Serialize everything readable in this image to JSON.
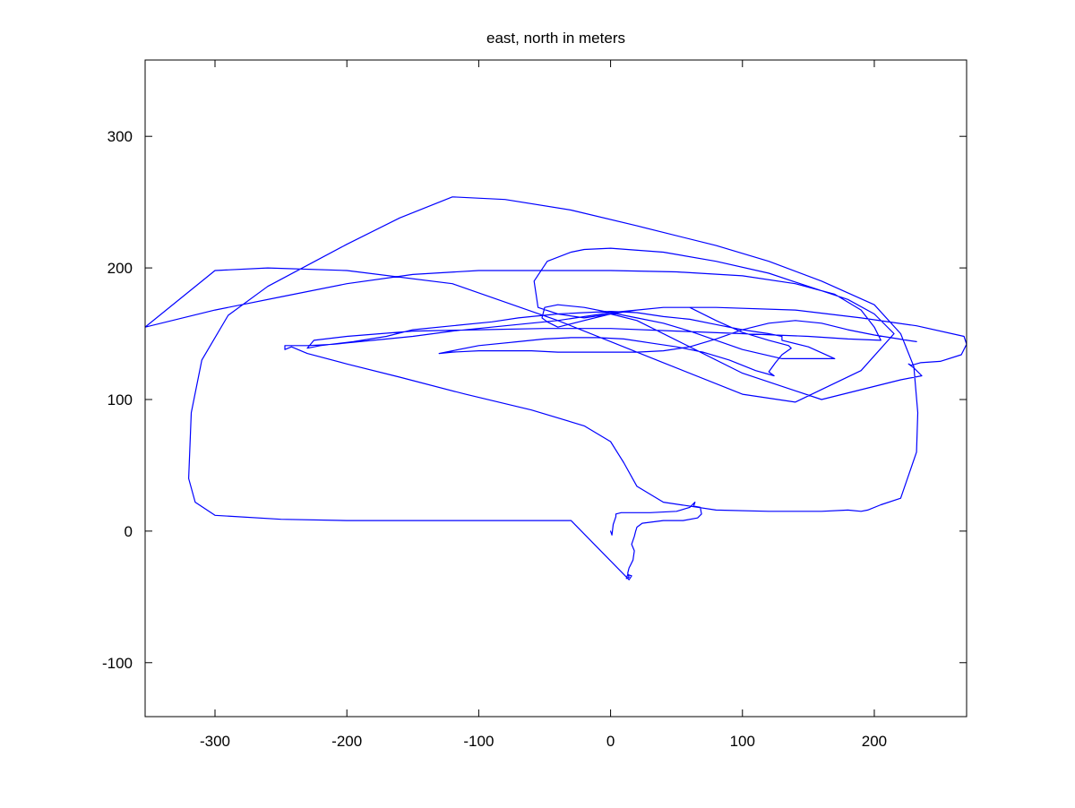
{
  "chart_data": {
    "type": "line",
    "title": "east, north in meters",
    "xlabel": "",
    "ylabel": "",
    "xlim": [
      -353,
      270
    ],
    "ylim": [
      -141,
      358
    ],
    "xticks": [
      -300,
      -200,
      -100,
      0,
      100,
      200
    ],
    "yticks": [
      -100,
      0,
      100,
      200,
      300
    ],
    "xtick_labels": [
      "-300",
      "-200",
      "-100",
      "0",
      "100",
      "200"
    ],
    "ytick_labels": [
      "-100",
      "0",
      "100",
      "200",
      "300"
    ],
    "grid": false,
    "legend": "none",
    "series": [
      {
        "color": "#0000ff",
        "x": [
          0,
          1,
          2,
          4,
          4,
          8,
          30,
          50,
          60,
          64,
          63,
          68,
          69,
          66,
          55,
          40,
          24,
          20,
          19,
          18,
          16,
          18,
          17,
          15,
          14,
          13,
          14,
          12,
          13,
          16,
          14,
          -30,
          -100,
          -200,
          -250,
          -300,
          -315,
          -320,
          -318,
          -310,
          -290,
          -260,
          -200,
          -160,
          -120,
          -80,
          -30,
          20,
          80,
          120,
          160,
          200,
          220,
          230,
          233,
          232,
          220,
          205,
          195,
          190,
          180,
          160,
          120,
          80,
          40,
          20,
          10,
          0,
          -20,
          -60,
          -110,
          -160,
          -200,
          -230,
          -242,
          -247,
          -247,
          -230,
          -210,
          -180,
          -150,
          -120,
          -80,
          -40,
          0,
          40,
          80,
          140,
          190,
          232,
          268,
          270,
          266,
          250,
          235,
          228,
          226,
          230,
          236,
          220,
          160,
          100,
          60,
          20,
          0,
          -20,
          -40,
          -55,
          -58,
          -48,
          -30,
          -20,
          0,
          40,
          80,
          120,
          150,
          180,
          200,
          215,
          190,
          140,
          100,
          40,
          -40,
          -120,
          -200,
          -260,
          -300,
          -353,
          -300,
          -250,
          -200,
          -150,
          -100,
          -50,
          0,
          50,
          100,
          140,
          170,
          190,
          200,
          205,
          180,
          150,
          100,
          50,
          0,
          -50,
          -100,
          -150,
          -200,
          -225,
          -230,
          -220,
          -195,
          -170,
          -150,
          -120,
          -90,
          -70,
          -60,
          -40,
          -20,
          0,
          20,
          40,
          60,
          80,
          100,
          120,
          130,
          130,
          150,
          170,
          130,
          100,
          80,
          60,
          40,
          20,
          0,
          -20,
          -40,
          -50,
          -52,
          -48,
          -40,
          -20,
          0,
          20,
          40,
          60,
          80,
          100,
          120,
          135,
          137,
          130,
          125,
          120,
          124,
          110,
          90,
          70,
          50,
          30,
          10,
          -10,
          -30,
          -50,
          -70,
          -100,
          -120,
          -130,
          -120,
          -100,
          -80,
          -60,
          -40,
          -20,
          0,
          20,
          40,
          60,
          80,
          100,
          120,
          140,
          160,
          180,
          200,
          225,
          232
        ],
        "y": [
          0,
          -3,
          5,
          11,
          13,
          14,
          14,
          15,
          18,
          22,
          19,
          18,
          13,
          10,
          8,
          8,
          6,
          3,
          0,
          -4,
          -10,
          -15,
          -22,
          -26,
          -28,
          -32,
          -35,
          -36,
          -33,
          -34,
          -37,
          8,
          8,
          8,
          9,
          12,
          22,
          40,
          90,
          130,
          164,
          186,
          218,
          238,
          254,
          252,
          244,
          232,
          217,
          205,
          190,
          172,
          150,
          125,
          90,
          60,
          25,
          20,
          16,
          15,
          16,
          15,
          15,
          16,
          22,
          34,
          52,
          68,
          80,
          92,
          104,
          117,
          127,
          135,
          140,
          138,
          141,
          141,
          142,
          145,
          148,
          152,
          156,
          160,
          166,
          170,
          170,
          168,
          162,
          156,
          148,
          142,
          134,
          129,
          128,
          126,
          127,
          124,
          118,
          115,
          100,
          120,
          140,
          160,
          165,
          162,
          165,
          170,
          190,
          205,
          212,
          214,
          215,
          212,
          205,
          196,
          186,
          176,
          165,
          150,
          122,
          98,
          104,
          128,
          160,
          188,
          198,
          200,
          198,
          155,
          168,
          178,
          188,
          195,
          198,
          198,
          198,
          197,
          194,
          188,
          180,
          168,
          155,
          145,
          146,
          148,
          150,
          152,
          154,
          154,
          153,
          152,
          148,
          145,
          139,
          141,
          144,
          148,
          153,
          156,
          159,
          162,
          163,
          165,
          166,
          167,
          166,
          163,
          161,
          157,
          153,
          150,
          148,
          145,
          140,
          131,
          131,
          138,
          145,
          152,
          158,
          162,
          166,
          170,
          172,
          170,
          162,
          159,
          155,
          160,
          165,
          168,
          170,
          170,
          160,
          151,
          145,
          141,
          139,
          134,
          128,
          121,
          118,
          122,
          130,
          136,
          140,
          143,
          146,
          147,
          147,
          146,
          144,
          141,
          137,
          135,
          136,
          137,
          137,
          137,
          136,
          136,
          136,
          136,
          137,
          140,
          146,
          153,
          158,
          160,
          158,
          153,
          149,
          145,
          144
        ]
      }
    ]
  }
}
